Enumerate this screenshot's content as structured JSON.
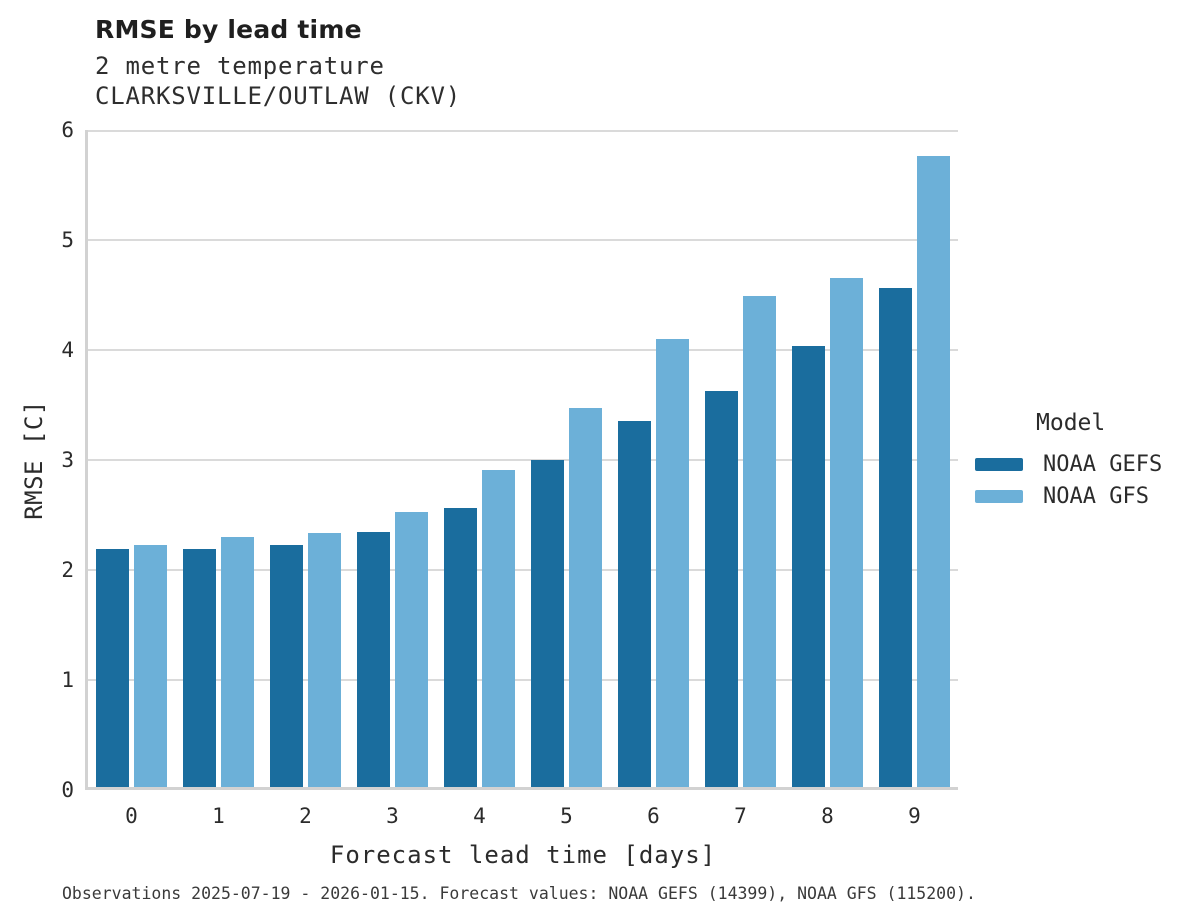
{
  "header": {
    "title": "RMSE by lead time",
    "subtitle_line1": "2 metre temperature",
    "subtitle_line2": "CLARKSVILLE/OUTLAW (CKV)"
  },
  "legend": {
    "title": "Model",
    "items": [
      {
        "label": "NOAA GEFS",
        "color": "#1a6d9e"
      },
      {
        "label": "NOAA GFS",
        "color": "#6cb0d8"
      }
    ]
  },
  "footer": {
    "caption": "Observations 2025-07-19 - 2026-01-15. Forecast values: NOAA GEFS (14399), NOAA GFS (115200)."
  },
  "colors": {
    "gefs_bar": "#1a6d9e",
    "gfs_bar": "#6cb0d8",
    "gridline": "#dadada",
    "axis_spine": "#d2d2d2",
    "text": "#2b2b2b"
  },
  "chart_data": {
    "type": "bar",
    "title": "RMSE by lead time",
    "subtitle": [
      "2 metre temperature",
      "CLARKSVILLE/OUTLAW (CKV)"
    ],
    "categories": [
      "0",
      "1",
      "2",
      "3",
      "4",
      "5",
      "6",
      "7",
      "8",
      "9"
    ],
    "series": [
      {
        "name": "NOAA GEFS",
        "color": "#1a6d9e",
        "values": [
          2.16,
          2.16,
          2.2,
          2.32,
          2.54,
          2.97,
          3.33,
          3.6,
          4.01,
          4.54
        ]
      },
      {
        "name": "NOAA GFS",
        "color": "#6cb0d8",
        "values": [
          2.2,
          2.27,
          2.31,
          2.5,
          2.88,
          3.45,
          4.07,
          4.46,
          4.63,
          5.74
        ]
      }
    ],
    "xlabel": "Forecast lead time [days]",
    "ylabel": "RMSE [C]",
    "ylim": [
      0,
      6
    ],
    "yticks": [
      0,
      1,
      2,
      3,
      4,
      5,
      6
    ],
    "grid": true,
    "legend_title": "Model",
    "legend_position": "right"
  }
}
